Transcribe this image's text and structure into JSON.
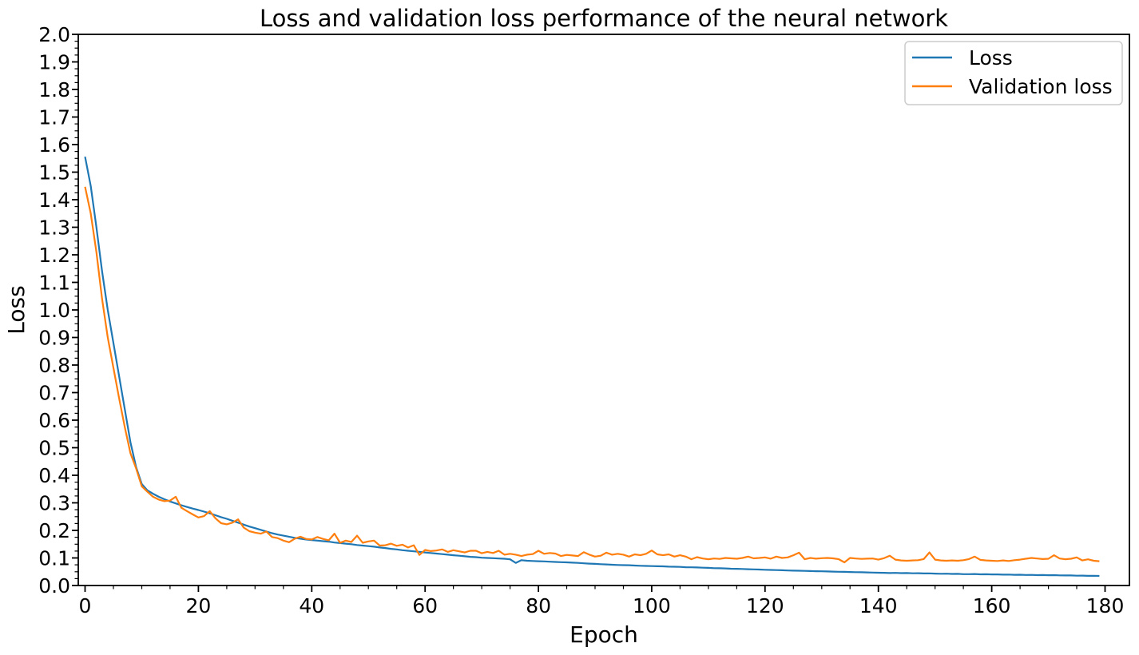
{
  "figure": {
    "background": "#ffffff",
    "text_color": "#000000",
    "spine_color": "#000000"
  },
  "chart_data": {
    "type": "line",
    "title": "Loss and validation loss performance of the neural network",
    "xlabel": "Epoch",
    "ylabel": "Loss",
    "xlim": [
      -1.2,
      184.3
    ],
    "ylim": [
      0,
      2.0
    ],
    "x_tick_labels": [
      "0",
      "20",
      "40",
      "60",
      "80",
      "100",
      "120",
      "140",
      "160",
      "180"
    ],
    "y_tick_labels": [
      "0.0",
      "0.1",
      "0.2",
      "0.3",
      "0.4",
      "0.5",
      "0.6",
      "0.7",
      "0.8",
      "0.9",
      "1.0",
      "1.1",
      "1.2",
      "1.3",
      "1.4",
      "1.5",
      "1.6",
      "1.7",
      "1.8",
      "1.9",
      "2.0"
    ],
    "x_minor_step": 5,
    "y_minor_step": 0.025,
    "grid": false,
    "legend_position": "upper right",
    "x": {
      "label": "epoch",
      "start": 0,
      "step": 1,
      "count": 180
    },
    "series": [
      {
        "name": "Loss",
        "color": "#1f77b4",
        "values": [
          1.556,
          1.45,
          1.3,
          1.14,
          1.0,
          0.88,
          0.76,
          0.64,
          0.52,
          0.43,
          0.368,
          0.345,
          0.333,
          0.322,
          0.313,
          0.305,
          0.298,
          0.291,
          0.285,
          0.279,
          0.274,
          0.268,
          0.262,
          0.255,
          0.248,
          0.242,
          0.235,
          0.228,
          0.221,
          0.214,
          0.208,
          0.202,
          0.196,
          0.19,
          0.185,
          0.181,
          0.177,
          0.173,
          0.17,
          0.167,
          0.165,
          0.163,
          0.161,
          0.159,
          0.156,
          0.154,
          0.152,
          0.15,
          0.147,
          0.145,
          0.143,
          0.141,
          0.138,
          0.136,
          0.133,
          0.131,
          0.128,
          0.126,
          0.124,
          0.122,
          0.12,
          0.118,
          0.116,
          0.114,
          0.112,
          0.11,
          0.108,
          0.106,
          0.104,
          0.103,
          0.101,
          0.1,
          0.099,
          0.098,
          0.097,
          0.095,
          0.082,
          0.092,
          0.09,
          0.089,
          0.088,
          0.0875,
          0.0865,
          0.0855,
          0.0845,
          0.084,
          0.083,
          0.082,
          0.0805,
          0.0795,
          0.0785,
          0.0775,
          0.0765,
          0.0755,
          0.0745,
          0.074,
          0.0735,
          0.0725,
          0.0715,
          0.071,
          0.0705,
          0.07,
          0.0695,
          0.0685,
          0.068,
          0.0675,
          0.0665,
          0.066,
          0.0655,
          0.0645,
          0.064,
          0.063,
          0.0625,
          0.062,
          0.061,
          0.0605,
          0.06,
          0.059,
          0.0585,
          0.058,
          0.057,
          0.0565,
          0.056,
          0.0555,
          0.0545,
          0.054,
          0.0535,
          0.053,
          0.0525,
          0.052,
          0.0515,
          0.051,
          0.0505,
          0.05,
          0.0495,
          0.049,
          0.0485,
          0.048,
          0.0475,
          0.047,
          0.0465,
          0.046,
          0.0452,
          0.0458,
          0.0448,
          0.0452,
          0.0443,
          0.0447,
          0.0437,
          0.044,
          0.0432,
          0.0425,
          0.0428,
          0.0419,
          0.0422,
          0.0413,
          0.0412,
          0.0416,
          0.0405,
          0.0408,
          0.0402,
          0.0404,
          0.0395,
          0.0398,
          0.0389,
          0.0392,
          0.0384,
          0.0386,
          0.0378,
          0.0381,
          0.0374,
          0.0376,
          0.0368,
          0.0364,
          0.0366,
          0.0357,
          0.036,
          0.0352,
          0.0354,
          0.0347
        ]
      },
      {
        "name": "Validation loss",
        "color": "#ff7f0e",
        "values": [
          1.447,
          1.35,
          1.21,
          1.04,
          0.9,
          0.79,
          0.68,
          0.575,
          0.48,
          0.425,
          0.36,
          0.34,
          0.322,
          0.312,
          0.306,
          0.308,
          0.322,
          0.282,
          0.27,
          0.258,
          0.247,
          0.252,
          0.27,
          0.244,
          0.226,
          0.222,
          0.228,
          0.24,
          0.21,
          0.197,
          0.192,
          0.188,
          0.196,
          0.176,
          0.172,
          0.163,
          0.157,
          0.17,
          0.177,
          0.169,
          0.167,
          0.176,
          0.169,
          0.164,
          0.188,
          0.155,
          0.163,
          0.158,
          0.181,
          0.155,
          0.16,
          0.163,
          0.145,
          0.146,
          0.152,
          0.144,
          0.148,
          0.138,
          0.146,
          0.111,
          0.129,
          0.125,
          0.127,
          0.131,
          0.122,
          0.128,
          0.124,
          0.12,
          0.126,
          0.126,
          0.117,
          0.122,
          0.118,
          0.126,
          0.112,
          0.115,
          0.112,
          0.107,
          0.112,
          0.114,
          0.126,
          0.115,
          0.118,
          0.116,
          0.107,
          0.111,
          0.109,
          0.107,
          0.121,
          0.112,
          0.105,
          0.108,
          0.119,
          0.112,
          0.115,
          0.112,
          0.105,
          0.113,
          0.11,
          0.115,
          0.127,
          0.113,
          0.11,
          0.113,
          0.105,
          0.11,
          0.105,
          0.0955,
          0.103,
          0.098,
          0.0955,
          0.098,
          0.0965,
          0.1,
          0.0985,
          0.097,
          0.1,
          0.105,
          0.0985,
          0.1,
          0.102,
          0.0975,
          0.105,
          0.1,
          0.102,
          0.11,
          0.119,
          0.0955,
          0.1,
          0.0975,
          0.099,
          0.1,
          0.0985,
          0.0955,
          0.084,
          0.1,
          0.098,
          0.0965,
          0.0975,
          0.098,
          0.094,
          0.099,
          0.108,
          0.094,
          0.091,
          0.09,
          0.091,
          0.092,
          0.096,
          0.12,
          0.094,
          0.091,
          0.09,
          0.091,
          0.09,
          0.092,
          0.096,
          0.105,
          0.093,
          0.091,
          0.09,
          0.089,
          0.091,
          0.089,
          0.092,
          0.094,
          0.097,
          0.1,
          0.098,
          0.096,
          0.097,
          0.11,
          0.098,
          0.0955,
          0.097,
          0.102,
          0.091,
          0.095,
          0.09,
          0.088
        ]
      }
    ]
  },
  "legend": {
    "entries": [
      {
        "label": "Loss"
      },
      {
        "label": "Validation loss"
      }
    ]
  }
}
